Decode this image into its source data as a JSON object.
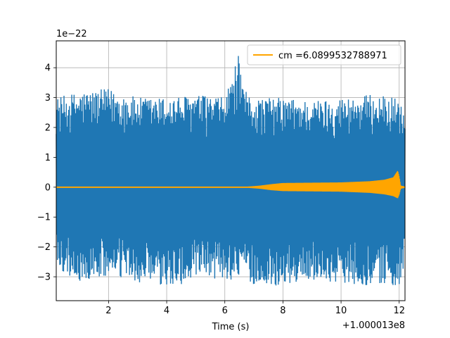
{
  "chart_data": {
    "type": "line",
    "title": "",
    "xlabel": "Time (s)",
    "ylabel": "",
    "x_offset_label": "+1.000013e8",
    "y_scale_label": "1e−22",
    "xlim": [
      0.2,
      12.2
    ],
    "ylim": [
      -3.8,
      4.9
    ],
    "x_ticks": [
      2,
      4,
      6,
      8,
      10,
      12
    ],
    "x_tick_labels": [
      "2",
      "4",
      "6",
      "8",
      "10",
      "12"
    ],
    "y_ticks": [
      -3,
      -2,
      -1,
      0,
      1,
      2,
      3,
      4
    ],
    "y_tick_labels": [
      "−3",
      "−2",
      "−1",
      "0",
      "1",
      "2",
      "3",
      "4"
    ],
    "grid": true,
    "legend_position": "top-right",
    "series": [
      {
        "kind": "noise",
        "color": "#1f77b4",
        "envelope": {
          "x": [
            0.2,
            1.0,
            2.0,
            3.0,
            4.0,
            5.0,
            6.0,
            6.5,
            6.6,
            7.0,
            8.0,
            9.0,
            10.0,
            11.0,
            12.0,
            12.2
          ],
          "upper": [
            3.0,
            3.2,
            3.3,
            3.0,
            3.0,
            3.1,
            3.0,
            4.5,
            3.3,
            3.0,
            3.0,
            2.9,
            3.0,
            3.1,
            3.0,
            2.3
          ],
          "lower": [
            -2.7,
            -3.2,
            -3.0,
            -3.2,
            -3.4,
            -3.1,
            -3.1,
            -3.1,
            -2.9,
            -3.3,
            -3.3,
            -3.1,
            -3.2,
            -3.3,
            -3.3,
            -2.5
          ]
        }
      },
      {
        "name": "cm =6.0899532788971",
        "kind": "chirp",
        "color": "#ffa500",
        "envelope": {
          "x": [
            0.2,
            6.8,
            7.2,
            7.6,
            8.0,
            9.0,
            10.0,
            11.0,
            11.5,
            11.8,
            11.95,
            12.0,
            12.05,
            12.2
          ],
          "upper": [
            0.02,
            0.02,
            0.05,
            0.1,
            0.14,
            0.15,
            0.16,
            0.2,
            0.25,
            0.33,
            0.55,
            0.35,
            0.05,
            0.02
          ],
          "lower": [
            -0.02,
            -0.02,
            -0.05,
            -0.1,
            -0.13,
            -0.14,
            -0.15,
            -0.19,
            -0.24,
            -0.3,
            -0.37,
            -0.25,
            -0.05,
            -0.02
          ]
        }
      }
    ]
  }
}
